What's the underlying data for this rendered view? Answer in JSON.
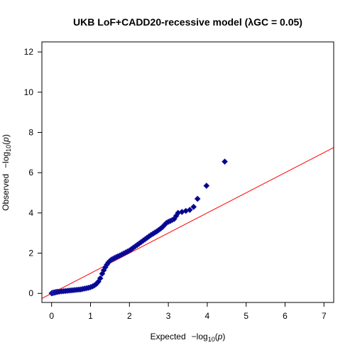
{
  "chart_data": {
    "type": "scatter",
    "title": "UKB LoF+CADD20-recessive model (λGC = 0.05)",
    "xlabel": {
      "prefix": "Expected",
      "minus": "−log",
      "sub": "10",
      "paren_open": "(",
      "italic": "p",
      "paren_close": ")"
    },
    "ylabel": {
      "prefix": "Observed",
      "minus": "−log",
      "sub": "10",
      "paren_open": "(",
      "italic": "p",
      "paren_close": ")"
    },
    "xlim": [
      -0.25,
      7.25
    ],
    "ylim": [
      -0.45,
      12.5
    ],
    "x_ticks": [
      "0",
      "1",
      "2",
      "3",
      "4",
      "5",
      "6",
      "7"
    ],
    "y_ticks": [
      "0",
      "2",
      "4",
      "6",
      "8",
      "10",
      "12"
    ],
    "grid": false,
    "legend": "none",
    "reference_line": {
      "slope": 1,
      "intercept": 0,
      "color": "#ff0000"
    },
    "point_color": "#00008b",
    "point_edge_color": "#1a1aa6",
    "points": {
      "x": [
        0.0,
        0.02,
        0.04,
        0.06,
        0.08,
        0.1,
        0.13,
        0.16,
        0.2,
        0.25,
        0.3,
        0.35,
        0.4,
        0.45,
        0.5,
        0.55,
        0.6,
        0.65,
        0.7,
        0.75,
        0.8,
        0.85,
        0.9,
        0.95,
        1.0,
        1.05,
        1.1,
        1.15,
        1.2,
        1.25,
        1.3,
        1.34,
        1.38,
        1.42,
        1.46,
        1.5,
        1.54,
        1.58,
        1.62,
        1.66,
        1.7,
        1.75,
        1.8,
        1.85,
        1.9,
        1.95,
        2.0,
        2.05,
        2.1,
        2.15,
        2.2,
        2.25,
        2.3,
        2.35,
        2.4,
        2.45,
        2.5,
        2.55,
        2.6,
        2.65,
        2.7,
        2.75,
        2.8,
        2.85,
        2.9,
        2.95,
        3.0,
        3.05,
        3.1,
        3.15,
        3.2,
        3.25,
        3.35,
        3.45,
        3.55,
        3.65,
        3.75,
        3.98,
        4.45
      ],
      "y": [
        0.01,
        0.02,
        0.03,
        0.04,
        0.05,
        0.06,
        0.07,
        0.08,
        0.09,
        0.1,
        0.11,
        0.12,
        0.13,
        0.14,
        0.15,
        0.16,
        0.17,
        0.18,
        0.19,
        0.2,
        0.22,
        0.24,
        0.26,
        0.28,
        0.31,
        0.35,
        0.4,
        0.47,
        0.58,
        0.75,
        0.98,
        1.15,
        1.3,
        1.43,
        1.54,
        1.62,
        1.68,
        1.72,
        1.76,
        1.8,
        1.84,
        1.88,
        1.93,
        1.98,
        2.03,
        2.08,
        2.13,
        2.2,
        2.27,
        2.34,
        2.41,
        2.48,
        2.55,
        2.62,
        2.69,
        2.76,
        2.83,
        2.9,
        2.96,
        3.02,
        3.08,
        3.15,
        3.22,
        3.3,
        3.4,
        3.5,
        3.56,
        3.6,
        3.65,
        3.7,
        3.85,
        4.0,
        4.05,
        4.1,
        4.15,
        4.3,
        4.7,
        5.35,
        6.55
      ]
    }
  }
}
